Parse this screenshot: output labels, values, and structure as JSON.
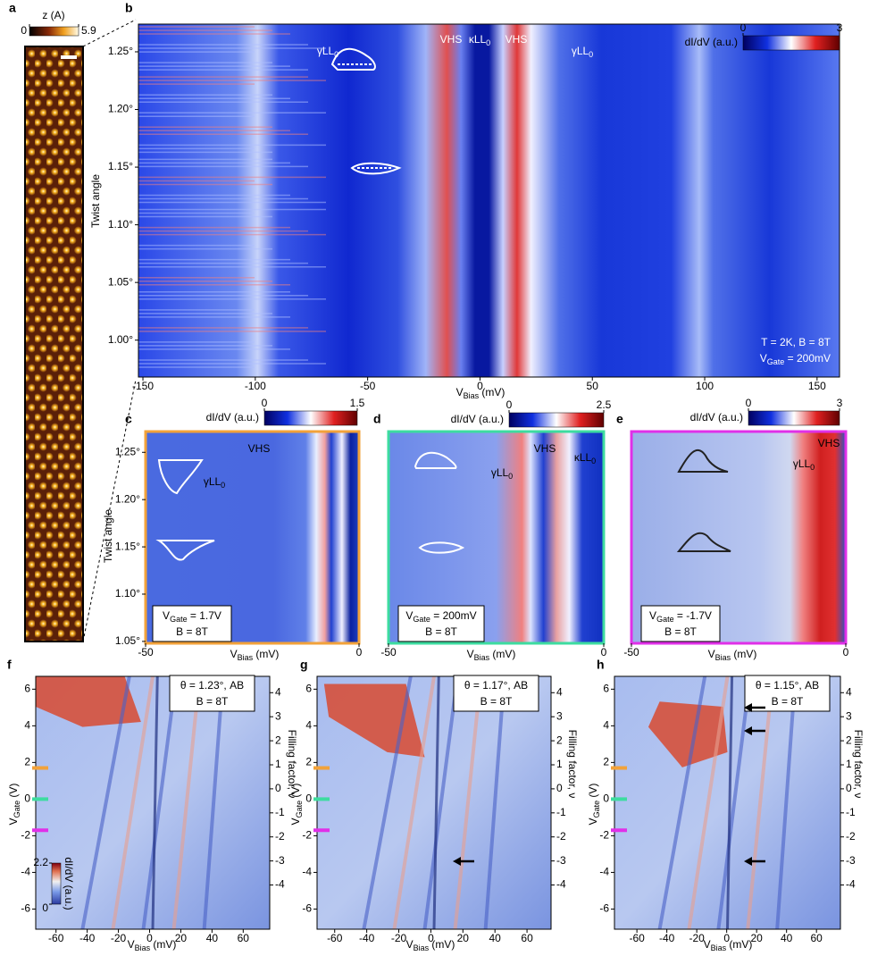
{
  "chart_data": [
    {
      "panel": "a",
      "type": "image",
      "colorbar_label": "z (A)",
      "clim": [
        0,
        5.9
      ],
      "cticks": [
        0,
        5.9
      ]
    },
    {
      "panel": "b",
      "type": "heatmap",
      "xlabel": [
        {
          "t": "V"
        },
        {
          "s": "Bias"
        },
        {
          "t": " (mV)"
        }
      ],
      "ylabel": "Twist angle",
      "xlim": [
        -152,
        160
      ],
      "xticks": [
        -150,
        -100,
        -50,
        0,
        50,
        100,
        150
      ],
      "ylim": [
        0.968,
        1.274
      ],
      "yticks": [
        {
          "value": 1.0,
          "label": "1.00°"
        },
        {
          "value": 1.05,
          "label": "1.05°"
        },
        {
          "value": 1.1,
          "label": "1.10°"
        },
        {
          "value": 1.15,
          "label": "1.15°"
        },
        {
          "value": 1.2,
          "label": "1.20°"
        },
        {
          "value": 1.25,
          "label": "1.25°"
        }
      ],
      "colorbar_label": "dI/dV (a.u.)",
      "clim": [
        0,
        3
      ],
      "cticks": [
        0,
        3
      ],
      "annotations": [
        [
          {
            "t": "γLL"
          },
          {
            "s": "0"
          }
        ],
        [
          {
            "t": "VHS"
          }
        ],
        [
          {
            "t": "κLL"
          },
          {
            "s": "0"
          }
        ],
        [
          {
            "t": "VHS"
          }
        ],
        [
          {
            "t": "γLL"
          },
          {
            "s": "0"
          }
        ]
      ],
      "info": [
        [
          {
            "t": "T = 2K, B = 8T"
          }
        ],
        [
          {
            "t": "V"
          },
          {
            "s": "Gate"
          },
          {
            "t": " = 200mV"
          }
        ]
      ]
    },
    {
      "panel": "c",
      "type": "heatmap",
      "border": "#f2a23a",
      "xlabel": [
        {
          "t": "V"
        },
        {
          "s": "Bias"
        },
        {
          "t": " (mV)"
        }
      ],
      "ylabel": "Twist angle",
      "xlim": [
        -50,
        0
      ],
      "xticks": [
        -50,
        0
      ],
      "ylim": [
        1.048,
        1.272
      ],
      "yticks": [
        {
          "value": 1.05,
          "label": "1.05°"
        },
        {
          "value": 1.1,
          "label": "1.10°"
        },
        {
          "value": 1.15,
          "label": "1.15°"
        },
        {
          "value": 1.2,
          "label": "1.20°"
        },
        {
          "value": 1.25,
          "label": "1.25°"
        }
      ],
      "colorbar_label": "dI/dV (a.u.)",
      "clim": [
        0,
        1.5
      ],
      "cticks": [
        0,
        1.5
      ],
      "annotations": [
        [
          {
            "t": "VHS"
          }
        ],
        [
          {
            "t": "γLL"
          },
          {
            "s": "0"
          }
        ]
      ],
      "info": [
        [
          {
            "t": "V"
          },
          {
            "s": "Gate"
          },
          {
            "t": " = 1.7V"
          }
        ],
        [
          {
            "t": "B = 8T"
          }
        ]
      ]
    },
    {
      "panel": "d",
      "type": "heatmap",
      "border": "#3ddca0",
      "xlabel": [
        {
          "t": "V"
        },
        {
          "s": "Bias"
        },
        {
          "t": " (mV)"
        }
      ],
      "xlim": [
        -50,
        0
      ],
      "xticks": [
        -50,
        0
      ],
      "colorbar_label": "dI/dV (a.u.)",
      "clim": [
        0,
        2.5
      ],
      "cticks": [
        0,
        2.5
      ],
      "annotations": [
        [
          {
            "t": "VHS"
          }
        ],
        [
          {
            "t": "γLL"
          },
          {
            "s": "0"
          }
        ],
        [
          {
            "t": "κLL"
          },
          {
            "s": "0"
          }
        ]
      ],
      "info": [
        [
          {
            "t": "V"
          },
          {
            "s": "Gate"
          },
          {
            "t": " = 200mV"
          }
        ],
        [
          {
            "t": "B = 8T"
          }
        ]
      ]
    },
    {
      "panel": "e",
      "type": "heatmap",
      "border": "#e030e8",
      "xlabel": [
        {
          "t": "V"
        },
        {
          "s": "Bias"
        },
        {
          "t": " (mV)"
        }
      ],
      "xlim": [
        -50,
        0
      ],
      "xticks": [
        -50,
        0
      ],
      "colorbar_label": "dI/dV (a.u.)",
      "clim": [
        0,
        3
      ],
      "cticks": [
        0,
        3
      ],
      "annotations": [
        [
          {
            "t": "VHS"
          }
        ],
        [
          {
            "t": "γLL"
          },
          {
            "s": "0"
          }
        ]
      ],
      "info": [
        [
          {
            "t": "V"
          },
          {
            "s": "Gate"
          },
          {
            "t": " = -1.7V"
          }
        ],
        [
          {
            "t": "B = 8T"
          }
        ]
      ]
    },
    {
      "panel": "f",
      "type": "heatmap",
      "xlabel": [
        {
          "t": "V"
        },
        {
          "s": "Bias"
        },
        {
          "t": " (mV)"
        }
      ],
      "ylabel": [
        {
          "t": "V"
        },
        {
          "s": "Gate"
        },
        {
          "t": " (V)"
        }
      ],
      "y2label": "Filling factor, ν",
      "xlim": [
        -73,
        77
      ],
      "xticks": [
        -60,
        -40,
        -20,
        0,
        20,
        40,
        60
      ],
      "ylim": [
        -7.1,
        6.7
      ],
      "yticks": [
        -6,
        -4,
        -2,
        0,
        2,
        4,
        6
      ],
      "y2lim": [
        -5.84,
        4.68
      ],
      "y2ticks": [
        -4,
        -3,
        -2,
        -1,
        0,
        1,
        2,
        3,
        4
      ],
      "markers": [
        {
          "value": 1.7,
          "color": "#f2a23a"
        },
        {
          "value": 0,
          "color": "#3ddca0"
        },
        {
          "value": -1.7,
          "color": "#e030e8"
        }
      ],
      "colorbar_label": "dI/dV (a.u.)",
      "clim": [
        0,
        2.2
      ],
      "cticks": [
        0,
        2.2
      ],
      "info": [
        [
          {
            "t": "θ = 1.23°, AB"
          }
        ],
        [
          {
            "t": "B = 8T"
          }
        ]
      ]
    },
    {
      "panel": "g",
      "type": "heatmap",
      "xlabel": [
        {
          "t": "V"
        },
        {
          "s": "Bias"
        },
        {
          "t": " (mV)"
        }
      ],
      "ylabel": [
        {
          "t": "V"
        },
        {
          "s": "Gate"
        },
        {
          "t": " (V)"
        }
      ],
      "y2label": "Filling factor, ν",
      "xlim": [
        -71,
        75
      ],
      "xticks": [
        -60,
        -40,
        -20,
        0,
        20,
        40,
        60
      ],
      "ylim": [
        -7.1,
        6.7
      ],
      "yticks": [
        -6,
        -4,
        -2,
        0,
        2,
        4,
        6
      ],
      "y2lim": [
        -5.84,
        4.68
      ],
      "y2ticks": [
        -4,
        -3,
        -2,
        -1,
        0,
        1,
        2,
        3,
        4
      ],
      "markers": [
        {
          "value": 1.7,
          "color": "#f2a23a"
        },
        {
          "value": 0,
          "color": "#3ddca0"
        },
        {
          "value": -1.7,
          "color": "#e030e8"
        }
      ],
      "info": [
        [
          {
            "t": "θ = 1.17°, AB"
          }
        ],
        [
          {
            "t": "B = 8T"
          }
        ]
      ]
    },
    {
      "panel": "h",
      "type": "heatmap",
      "xlabel": [
        {
          "t": "V"
        },
        {
          "s": "Bias"
        },
        {
          "t": " (mV)"
        }
      ],
      "ylabel": [
        {
          "t": "V"
        },
        {
          "s": "Gate"
        },
        {
          "t": " (V)"
        }
      ],
      "y2label": "Filling factor, ν",
      "xlim": [
        -75,
        76
      ],
      "xticks": [
        -60,
        -40,
        -20,
        0,
        20,
        40,
        60
      ],
      "ylim": [
        -7.1,
        6.7
      ],
      "yticks": [
        -6,
        -4,
        -2,
        0,
        2,
        4,
        6
      ],
      "y2lim": [
        -5.84,
        4.68
      ],
      "y2ticks": [
        -4,
        -3,
        -2,
        -1,
        0,
        1,
        2,
        3,
        4
      ],
      "markers": [
        {
          "value": 1.7,
          "color": "#f2a23a"
        },
        {
          "value": 0,
          "color": "#3ddca0"
        },
        {
          "value": -1.7,
          "color": "#e030e8"
        }
      ],
      "info": [
        [
          {
            "t": "θ = 1.15°, AB"
          }
        ],
        [
          {
            "t": "B = 8T"
          }
        ]
      ]
    }
  ]
}
